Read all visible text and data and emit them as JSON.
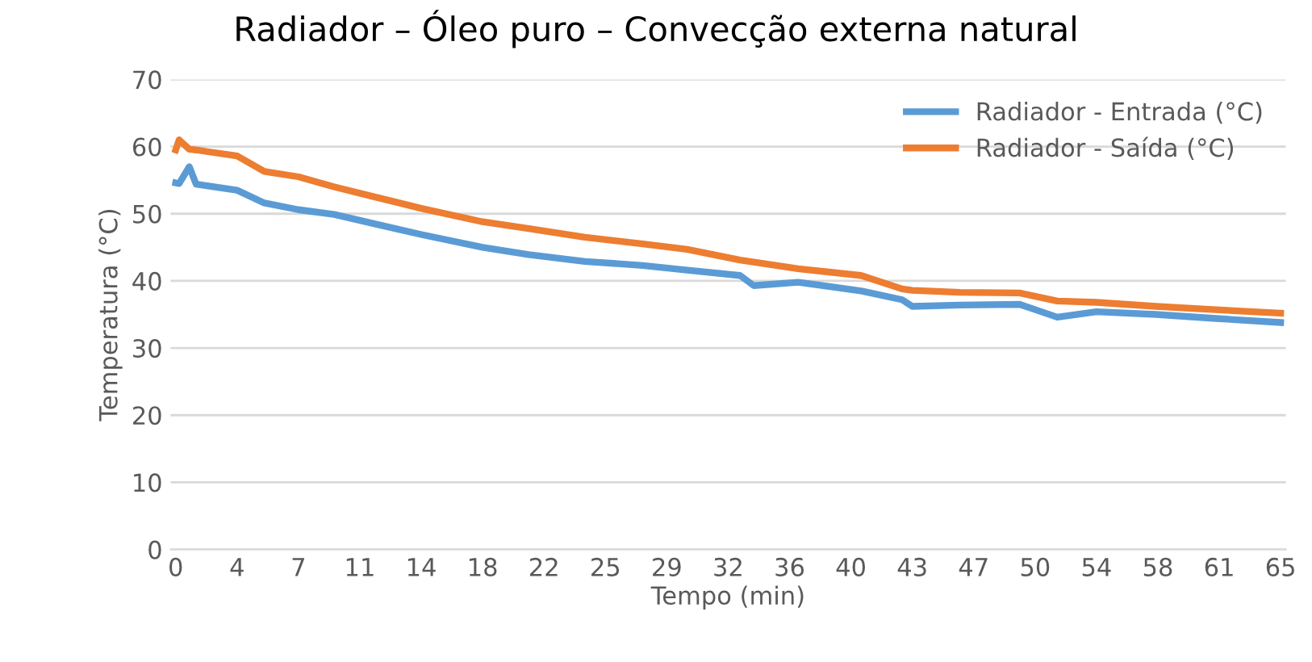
{
  "chart_data": {
    "type": "line",
    "title": "Radiador – Óleo puro – Convecção externa natural",
    "xlabel": "Tempo (min)",
    "ylabel": "Temperatura (°C)",
    "x": [
      0,
      0.2,
      0.8,
      1.2,
      3.6,
      5.2,
      7.2,
      9.3,
      12,
      14.4,
      18,
      20.7,
      24,
      27.4,
      30,
      33.1,
      33.9,
      36.5,
      40.2,
      42.6,
      43.2,
      46,
      49.5,
      51.7,
      54,
      57.5,
      61,
      64.8
    ],
    "series": [
      {
        "name": "Radiador - Entrada (°C)",
        "color": "#5b9bd5",
        "values": [
          54.6,
          54.5,
          57,
          54.4,
          53.5,
          51.6,
          50.6,
          49.9,
          48.3,
          46.9,
          45,
          43.9,
          42.9,
          42.3,
          41.6,
          40.8,
          39.3,
          39.8,
          38.5,
          37.2,
          36.2,
          36.4,
          36.5,
          34.6,
          35.4,
          35,
          34.4,
          33.8
        ]
      },
      {
        "name": "Radiador - Saída (°C)",
        "color": "#ed7d31",
        "values": [
          59.5,
          61,
          59.6,
          59.5,
          58.6,
          56.3,
          55.5,
          54,
          52.3,
          50.8,
          48.8,
          47.8,
          46.5,
          45.5,
          44.7,
          43.1,
          42.8,
          41.8,
          40.8,
          38.8,
          38.6,
          38.3,
          38.2,
          37,
          36.8,
          36.2,
          35.7,
          35.2
        ]
      }
    ],
    "xlim": [
      -0.3,
      65.1
    ],
    "xticks": [
      0,
      {
        "value": 3.6,
        "label": "4"
      },
      {
        "value": 7.2,
        "label": "7"
      },
      {
        "value": 10.8,
        "label": "11"
      },
      {
        "value": 14.4,
        "label": "14"
      },
      18,
      {
        "value": 21.6,
        "label": "22"
      },
      {
        "value": 25.2,
        "label": "25"
      },
      {
        "value": 28.8,
        "label": "29"
      },
      {
        "value": 32.4,
        "label": "32"
      },
      36,
      {
        "value": 39.6,
        "label": "40"
      },
      {
        "value": 43.2,
        "label": "43"
      },
      {
        "value": 46.8,
        "label": "47"
      },
      {
        "value": 50.4,
        "label": "50"
      },
      54,
      {
        "value": 57.6,
        "label": "58"
      },
      {
        "value": 61.2,
        "label": "61"
      },
      {
        "value": 64.8,
        "label": "65"
      }
    ],
    "ylim": [
      0,
      70
    ],
    "yticks": [
      0,
      10,
      20,
      30,
      40,
      50,
      60,
      70
    ],
    "grid": "y",
    "legend": "top right",
    "marker": "none",
    "line_style": "solid"
  }
}
